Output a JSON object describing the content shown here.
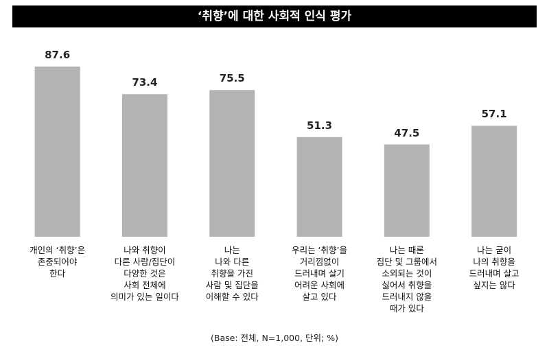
{
  "chart_data": {
    "type": "bar",
    "title": "‘취향’에 대한 사회적 인식 평가",
    "categories": [
      "개인의 ‘취향’은\n존중되어야\n한다",
      "나와 취향이\n다른 사람/집단이\n다양한 것은\n사회 전체에\n의미가 있는 일이다",
      "나는\n나와 다른\n취향을 가진\n사람 및 집단을\n이해할 수 있다",
      "우리는 ‘취향’을\n거리낌없이\n드러내며 살기\n어려운 사회에\n살고 있다",
      "나는 때론\n집단 및 그룹에서\n소외되는 것이\n싫어서 취향을\n드러내지 않을\n때가 있다",
      "나는 굳이\n나의 취향을\n드러내며 살고\n싶지는 않다"
    ],
    "values": [
      87.6,
      73.4,
      75.5,
      51.3,
      47.5,
      57.1
    ],
    "color": "#b3b3b3",
    "footnote": "(Base: 전체, N=1,000, 단위; %)"
  }
}
